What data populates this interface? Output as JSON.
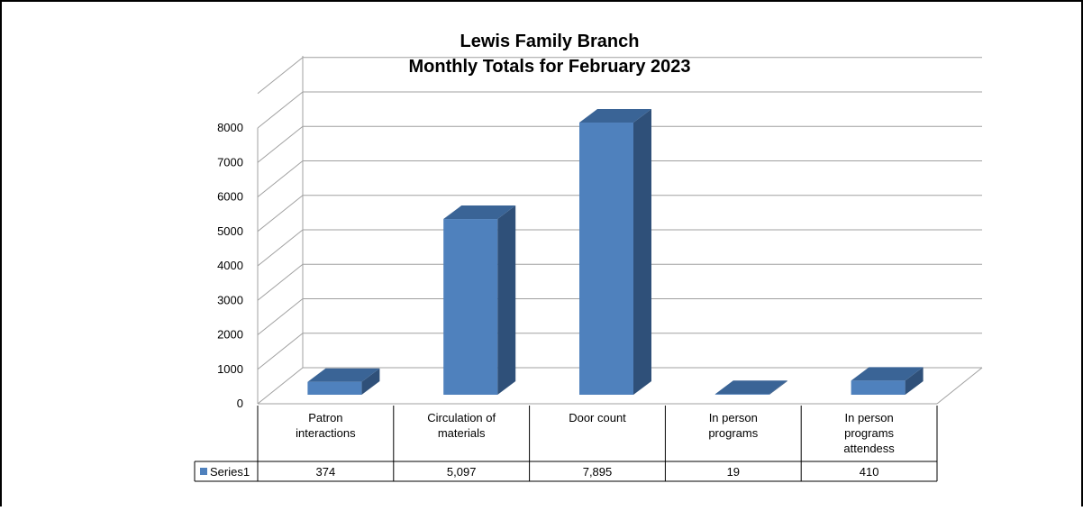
{
  "chart_data": {
    "type": "bar",
    "title_lines": [
      "Lewis Family Branch",
      "Monthly Totals for February 2023"
    ],
    "categories": [
      [
        "Patron",
        "interactions"
      ],
      [
        "Circulation of",
        "materials"
      ],
      [
        "Door count"
      ],
      [
        "In person",
        "programs"
      ],
      [
        "In person",
        "programs",
        "attendess"
      ]
    ],
    "series": [
      {
        "name": "Series1",
        "values": [
          374,
          5097,
          7895,
          19,
          410
        ],
        "labels": [
          "374",
          "5,097",
          "7,895",
          "19",
          "410"
        ]
      }
    ],
    "ylim": [
      0,
      8000
    ],
    "yticks": [
      "0",
      "1000",
      "2000",
      "3000",
      "4000",
      "5000",
      "6000",
      "7000",
      "8000"
    ],
    "grid": true,
    "data_table": true,
    "style": "3d-column",
    "colors": {
      "bar_front": "#4F81BD",
      "bar_side": "#2F5079",
      "bar_top": "#3A6496",
      "gridline": "#A0A0A0",
      "frame": "#000000"
    }
  }
}
